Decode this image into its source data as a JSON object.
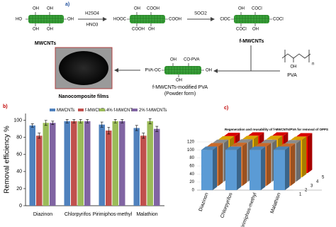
{
  "scheme": {
    "label": "a)",
    "mwcnt": {
      "name": "MWCNTs",
      "groups": [
        "HO",
        "OH",
        "OH",
        "OH",
        "OH",
        "OH"
      ]
    },
    "step1": {
      "reagents": [
        "H2SO4",
        "HNO3"
      ]
    },
    "oxidized": {
      "groups": [
        "HOOC",
        "OH",
        "COOH",
        "COOH",
        "OH",
        "COOH"
      ]
    },
    "step2": {
      "reagent": "SOCl2"
    },
    "fmwcnt": {
      "name": "f-MWCNTs",
      "groups": [
        "ClOC",
        "OH",
        "COCl",
        "COCl",
        "OH",
        "COCl"
      ]
    },
    "pva": {
      "name": "PVA",
      "group": "OH",
      "repeat": "n"
    },
    "modified": {
      "groups": [
        "PVA-OC",
        "OH",
        "CO-PVA",
        "OH",
        "OH"
      ],
      "name": "f-MWCNTs-modified PVA",
      "form": "(Powder form)"
    },
    "film": {
      "name": "Nanocomposite films"
    }
  },
  "chart_data": [
    {
      "type": "bar",
      "label": "b)",
      "ylabel": "Removal efficiency %",
      "categories": [
        "Diazinon",
        "Chlorpyrifos",
        "Pirimiphos-methyl",
        "Malathion"
      ],
      "series": [
        {
          "name": "MWCNTs",
          "color": "#4f81bd",
          "values": [
            94,
            99,
            95,
            91
          ],
          "errors": [
            2,
            2,
            3,
            3
          ]
        },
        {
          "name": "f-MWCNTs",
          "color": "#c0504d",
          "values": [
            82,
            99,
            88,
            82
          ],
          "errors": [
            3,
            2,
            4,
            3
          ]
        },
        {
          "name": "4% f-MWCNTs",
          "color": "#9bbb59",
          "values": [
            97,
            99,
            99,
            99
          ],
          "errors": [
            3,
            2,
            2,
            3
          ]
        },
        {
          "name": "2% f-MWCNTs",
          "color": "#8064a2",
          "values": [
            97,
            99,
            99,
            90
          ],
          "errors": [
            2,
            2,
            2,
            3
          ]
        }
      ],
      "ylim": [
        0,
        108
      ],
      "yticks": [
        0,
        20,
        40,
        60,
        80,
        100
      ],
      "legend": "top",
      "error_bars": true
    },
    {
      "type": "bar3d",
      "label": "c)",
      "title": "Regeneration and reusability of f-MWCNTs/PVA for removal of OPPS",
      "categories": [
        "Diazinon",
        "Chlorpyrifos",
        "Pirimiphos-methyl",
        "Malathion"
      ],
      "series": [
        {
          "name": "1",
          "color": "#5b9bd5",
          "values": [
            100,
            100,
            100,
            100
          ]
        },
        {
          "name": "2",
          "color": "#ed7d31",
          "values": [
            98,
            99,
            98,
            97
          ]
        },
        {
          "name": "3",
          "color": "#a5a5a5",
          "values": [
            96,
            97,
            96,
            95
          ]
        },
        {
          "name": "4",
          "color": "#ffc000",
          "values": [
            94,
            95,
            95,
            93
          ]
        },
        {
          "name": "5",
          "color": "#ff0000",
          "values": [
            92,
            93,
            93,
            91
          ]
        }
      ],
      "ylim": [
        0,
        120
      ],
      "yticks": [
        0,
        20,
        40,
        60,
        80,
        100,
        120
      ]
    }
  ]
}
